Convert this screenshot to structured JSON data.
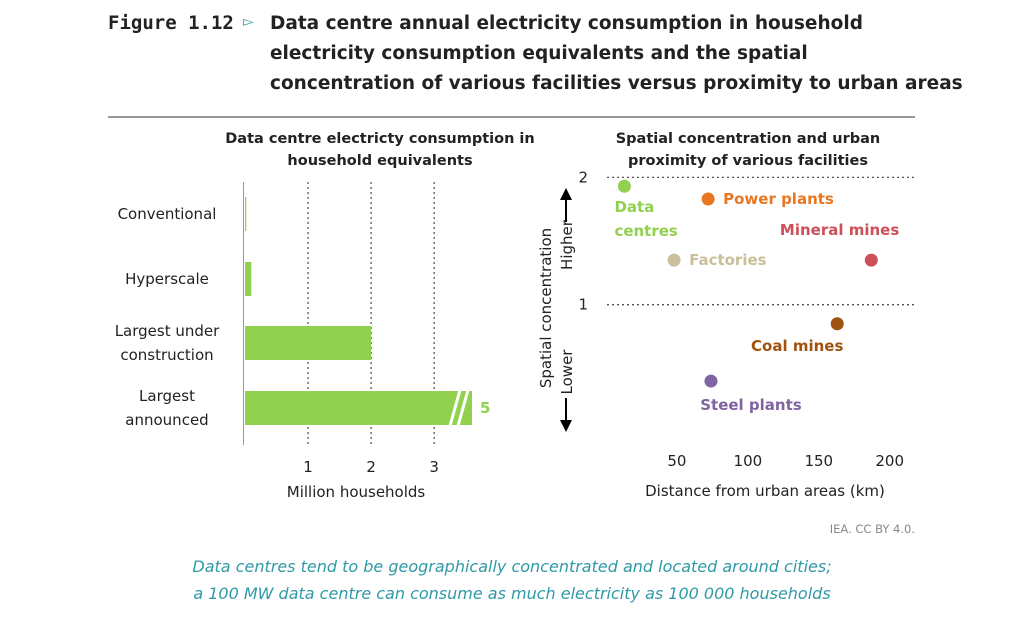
{
  "figure_label": "Figure 1.12",
  "title_lines": [
    "Data centre annual electricity consumption in household",
    "electricity consumption equivalents and the spatial",
    "concentration of various facilities versus proximity to urban areas"
  ],
  "chart_data": [
    {
      "type": "barh",
      "title": "Data centre electricty consumption in household equivalents",
      "categories": [
        "Conventional",
        "Hyperscale",
        "Largest under construction",
        "Largest announced"
      ],
      "values": [
        0.02,
        0.1,
        2,
        5
      ],
      "value_labels": [
        null,
        null,
        null,
        "5"
      ],
      "color": "#92d050",
      "xlim": [
        0,
        3.6
      ],
      "xticks": [
        1,
        2,
        3
      ],
      "grid": true,
      "x_label": "Million households"
    },
    {
      "type": "scatter",
      "title": "Spatial concentration and urban proximity of various facilities",
      "series": [
        {
          "name": "Data centres",
          "color": "#92d050",
          "x": [
            13
          ],
          "values": [
            1.93
          ]
        },
        {
          "name": "Power plants",
          "color": "#e87722",
          "x": [
            72
          ],
          "values": [
            1.83
          ]
        },
        {
          "name": "Mineral mines",
          "color": "#cd4f58",
          "x": [
            187
          ],
          "values": [
            1.35
          ]
        },
        {
          "name": "Factories",
          "color": "#c9bf9a",
          "x": [
            48
          ],
          "values": [
            1.35
          ]
        },
        {
          "name": "Coal mines",
          "color": "#a0520f",
          "x": [
            163
          ],
          "values": [
            0.85
          ]
        },
        {
          "name": "Steel plants",
          "color": "#8064a2",
          "x": [
            74
          ],
          "values": [
            0.4
          ]
        }
      ],
      "xlim": [
        0,
        215
      ],
      "xticks": [
        50,
        100,
        150,
        200
      ],
      "ylim": [
        0,
        2.05
      ],
      "yticks": [
        1,
        2
      ],
      "grid": true,
      "x_label": "Distance from urban areas (km)",
      "y_label": "Spatial concentration",
      "y_high_label": "Higher",
      "y_low_label": "Lower"
    }
  ],
  "source": "IEA. CC BY 4.0.",
  "caption": [
    "Data centres tend to be geographically concentrated and located around cities;",
    "a 100 MW data centre can consume as much electricity as 100 000 households"
  ]
}
